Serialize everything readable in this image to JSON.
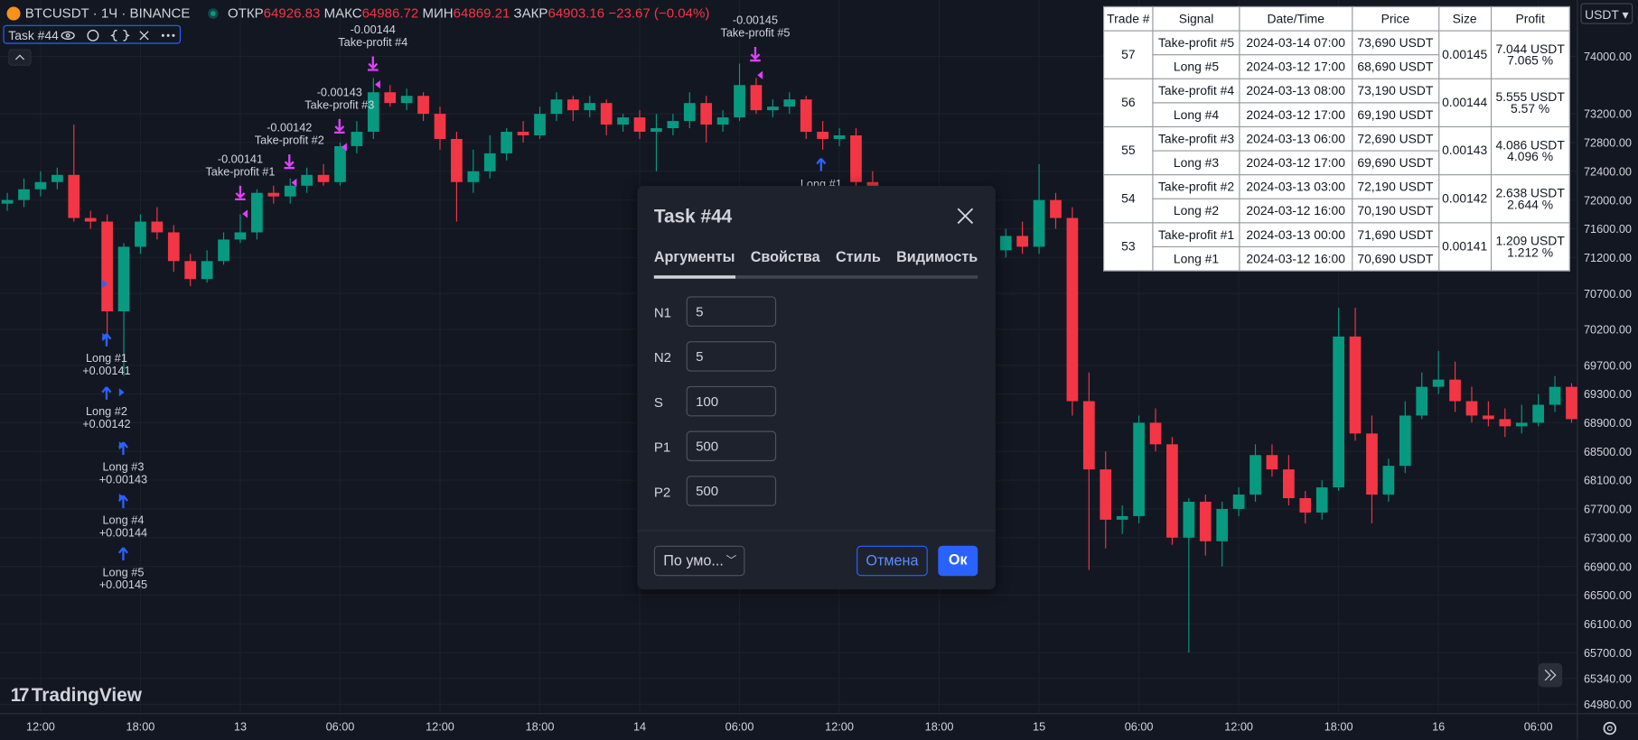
{
  "header": {
    "symbol": "BTCUSDT · 1Ч · BINANCE",
    "open_label": "ОТКР",
    "open": "64926.83",
    "high_label": "МАКС",
    "high": "64986.72",
    "low_label": "МИН",
    "low": "64869.21",
    "close_label": "ЗАКР",
    "close": "64903.16",
    "change": "−23.67 (−0.04%)",
    "indicator": "Task #44",
    "currency": "USDT"
  },
  "logo": "TradingView",
  "chart": {
    "type": "candlestick",
    "ylim": [
      64980,
      74000
    ],
    "yticks": [
      {
        "value": 74000,
        "label": "74000.00"
      },
      {
        "value": 73200,
        "label": "73200.00"
      },
      {
        "value": 72800,
        "label": "72800.00"
      },
      {
        "value": 72400,
        "label": "72400.00"
      },
      {
        "value": 72000,
        "label": "72000.00"
      },
      {
        "value": 71600,
        "label": "71600.00"
      },
      {
        "value": 71200,
        "label": "71200.00"
      },
      {
        "value": 70700,
        "label": "70700.00"
      },
      {
        "value": 70200,
        "label": "70200.00"
      },
      {
        "value": 69700,
        "label": "69700.00"
      },
      {
        "value": 69300,
        "label": "69300.00"
      },
      {
        "value": 68900,
        "label": "68900.00"
      },
      {
        "value": 68500,
        "label": "68500.00"
      },
      {
        "value": 68100,
        "label": "68100.00"
      },
      {
        "value": 67700,
        "label": "67700.00"
      },
      {
        "value": 67300,
        "label": "67300.00"
      },
      {
        "value": 66900,
        "label": "66900.00"
      },
      {
        "value": 66500,
        "label": "66500.00"
      },
      {
        "value": 66100,
        "label": "66100.00"
      },
      {
        "value": 65700,
        "label": "65700.00"
      },
      {
        "value": 65340,
        "label": "65340.00"
      },
      {
        "value": 64980,
        "label": "64980.00"
      }
    ],
    "time_labels": [
      "12:00",
      "18:00",
      "13",
      "06:00",
      "12:00",
      "18:00",
      "14",
      "06:00",
      "12:00",
      "18:00",
      "15",
      "06:00",
      "12:00",
      "18:00",
      "16",
      "06:00"
    ],
    "up_color": "#089981",
    "down_color": "#f23645",
    "candles": [
      [
        71950,
        72100,
        71850,
        72000
      ],
      [
        72000,
        72300,
        71900,
        72150
      ],
      [
        72150,
        72400,
        72050,
        72250
      ],
      [
        72250,
        72450,
        72150,
        72350
      ],
      [
        72350,
        73050,
        71700,
        71750
      ],
      [
        71750,
        71850,
        71600,
        71700
      ],
      [
        71700,
        71800,
        70000,
        70450
      ],
      [
        70450,
        71400,
        69550,
        71350
      ],
      [
        71350,
        71800,
        71250,
        71700
      ],
      [
        71700,
        71900,
        71450,
        71550
      ],
      [
        71550,
        71650,
        71000,
        71150
      ],
      [
        71150,
        71250,
        70800,
        70900
      ],
      [
        70900,
        71300,
        70850,
        71150
      ],
      [
        71150,
        71550,
        71100,
        71450
      ],
      [
        71450,
        71800,
        71400,
        71550
      ],
      [
        71550,
        72150,
        71450,
        72100
      ],
      [
        72100,
        72200,
        71950,
        72050
      ],
      [
        72050,
        72300,
        71950,
        72200
      ],
      [
        72200,
        72450,
        72100,
        72350
      ],
      [
        72350,
        72500,
        72200,
        72250
      ],
      [
        72250,
        72800,
        72200,
        72750
      ],
      [
        72750,
        73100,
        72650,
        72950
      ],
      [
        72950,
        73700,
        72850,
        73500
      ],
      [
        73500,
        73600,
        73300,
        73350
      ],
      [
        73350,
        73550,
        73250,
        73450
      ],
      [
        73450,
        73500,
        73100,
        73200
      ],
      [
        73200,
        73300,
        72700,
        72850
      ],
      [
        72850,
        72950,
        71700,
        72250
      ],
      [
        72250,
        72700,
        72100,
        72400
      ],
      [
        72400,
        72900,
        72300,
        72650
      ],
      [
        72650,
        73000,
        72550,
        72950
      ],
      [
        72950,
        73100,
        72800,
        72900
      ],
      [
        72900,
        73300,
        72850,
        73200
      ],
      [
        73200,
        73500,
        73100,
        73400
      ],
      [
        73400,
        73450,
        73100,
        73250
      ],
      [
        73250,
        73450,
        73150,
        73350
      ],
      [
        73350,
        73400,
        72900,
        73050
      ],
      [
        73050,
        73200,
        72950,
        73150
      ],
      [
        73150,
        73250,
        72850,
        72950
      ],
      [
        72950,
        73200,
        72400,
        73000
      ],
      [
        73000,
        73200,
        72900,
        73100
      ],
      [
        73100,
        73500,
        73000,
        73350
      ],
      [
        73350,
        73450,
        72800,
        73050
      ],
      [
        73050,
        73250,
        72950,
        73150
      ],
      [
        73150,
        73900,
        73100,
        73600
      ],
      [
        73600,
        73700,
        73200,
        73250
      ],
      [
        73250,
        73400,
        73150,
        73300
      ],
      [
        73300,
        73500,
        73200,
        73400
      ],
      [
        73400,
        73450,
        72850,
        72950
      ],
      [
        72950,
        73100,
        72700,
        72850
      ],
      [
        72850,
        73000,
        72750,
        72900
      ],
      [
        72900,
        73000,
        71900,
        72250
      ],
      [
        72250,
        72400,
        71800,
        71900
      ],
      [
        71900,
        72100,
        71600,
        71700
      ],
      [
        71700,
        71800,
        71350,
        71500
      ],
      [
        71500,
        71900,
        71400,
        71800
      ],
      [
        71800,
        71900,
        71500,
        71600
      ],
      [
        71600,
        72000,
        71550,
        71900
      ],
      [
        71900,
        72000,
        71500,
        71600
      ],
      [
        71600,
        71700,
        71200,
        71300
      ],
      [
        71300,
        71600,
        71200,
        71500
      ],
      [
        71500,
        71700,
        71250,
        71350
      ],
      [
        71350,
        72500,
        71250,
        72000
      ],
      [
        72000,
        72100,
        71600,
        71750
      ],
      [
        71750,
        71900,
        69000,
        69200
      ],
      [
        69200,
        69600,
        66850,
        68250
      ],
      [
        68250,
        68500,
        67150,
        67550
      ],
      [
        67550,
        67750,
        67350,
        67600
      ],
      [
        67600,
        69000,
        67500,
        68900
      ],
      [
        68900,
        69100,
        68500,
        68600
      ],
      [
        68600,
        68700,
        67200,
        67300
      ],
      [
        67300,
        67850,
        65700,
        67800
      ],
      [
        67800,
        67900,
        67050,
        67250
      ],
      [
        67250,
        67800,
        66900,
        67700
      ],
      [
        67700,
        68000,
        67600,
        67900
      ],
      [
        67900,
        68600,
        67800,
        68450
      ],
      [
        68450,
        68600,
        68150,
        68250
      ],
      [
        68250,
        68450,
        67750,
        67850
      ],
      [
        67850,
        67950,
        67500,
        67650
      ],
      [
        67650,
        68100,
        67550,
        68000
      ],
      [
        68000,
        70500,
        67950,
        70100
      ],
      [
        70100,
        70500,
        68650,
        68750
      ],
      [
        68750,
        69000,
        67500,
        67900
      ],
      [
        67900,
        68400,
        67800,
        68300
      ],
      [
        68300,
        69200,
        68200,
        69000
      ],
      [
        69000,
        69600,
        68950,
        69400
      ],
      [
        69400,
        69900,
        69300,
        69500
      ],
      [
        69500,
        69750,
        69050,
        69200
      ],
      [
        69200,
        69400,
        68900,
        69000
      ],
      [
        69000,
        69200,
        68850,
        68950
      ],
      [
        68950,
        69100,
        68700,
        68850
      ],
      [
        68850,
        69150,
        68750,
        68900
      ],
      [
        68900,
        69300,
        68850,
        69150
      ],
      [
        69150,
        69550,
        69050,
        69400
      ],
      [
        69400,
        69450,
        68900,
        68950
      ]
    ],
    "longs": [
      {
        "label": "Long #1",
        "size": "+0.00141"
      },
      {
        "label": "Long #2",
        "size": "+0.00142"
      },
      {
        "label": "Long #3",
        "size": "+0.00143"
      },
      {
        "label": "Long #4",
        "size": "+0.00144"
      },
      {
        "label": "Long #5",
        "size": "+0.00145"
      }
    ],
    "take_profits": [
      {
        "size": "-0.00141",
        "label": "Take-profit #1"
      },
      {
        "size": "-0.00142",
        "label": "Take-profit #2"
      },
      {
        "size": "-0.00143",
        "label": "Take-profit #3"
      },
      {
        "size": "-0.00144",
        "label": "Take-profit #4"
      },
      {
        "size": "-0.00145",
        "label": "Take-profit #5"
      }
    ],
    "extra_long": "Long #1"
  },
  "table": {
    "headers": [
      "Trade #",
      "Signal",
      "Date/Time",
      "Price",
      "Size",
      "Profit"
    ],
    "trades": [
      {
        "trade": "57",
        "size": "0.00145",
        "profit": [
          "7.044 USDT",
          "7.065 %"
        ],
        "rows": [
          [
            "Take-profit #5",
            "2024-03-14 07:00",
            "73,690 USDT"
          ],
          [
            "Long #5",
            "2024-03-12 17:00",
            "68,690 USDT"
          ]
        ]
      },
      {
        "trade": "56",
        "size": "0.00144",
        "profit": [
          "5.555 USDT",
          "5.57 %"
        ],
        "rows": [
          [
            "Take-profit #4",
            "2024-03-13 08:00",
            "73,190 USDT"
          ],
          [
            "Long #4",
            "2024-03-12 17:00",
            "69,190 USDT"
          ]
        ]
      },
      {
        "trade": "55",
        "size": "0.00143",
        "profit": [
          "4.086 USDT",
          "4.096 %"
        ],
        "rows": [
          [
            "Take-profit #3",
            "2024-03-13 06:00",
            "72,690 USDT"
          ],
          [
            "Long #3",
            "2024-03-12 17:00",
            "69,690 USDT"
          ]
        ]
      },
      {
        "trade": "54",
        "size": "0.00142",
        "profit": [
          "2.638 USDT",
          "2.644 %"
        ],
        "rows": [
          [
            "Take-profit #2",
            "2024-03-13 03:00",
            "72,190 USDT"
          ],
          [
            "Long #2",
            "2024-03-12 16:00",
            "70,190 USDT"
          ]
        ]
      },
      {
        "trade": "53",
        "size": "0.00141",
        "profit": [
          "1.209 USDT",
          "1.212 %"
        ],
        "rows": [
          [
            "Take-profit #1",
            "2024-03-13 00:00",
            "71,690 USDT"
          ],
          [
            "Long #1",
            "2024-03-12 16:00",
            "70,690 USDT"
          ]
        ]
      }
    ]
  },
  "dialog": {
    "title": "Task #44",
    "tabs": [
      "Аргументы",
      "Свойства",
      "Стиль",
      "Видимость"
    ],
    "fields": [
      {
        "label": "N1",
        "value": "5"
      },
      {
        "label": "N2",
        "value": "5"
      },
      {
        "label": "S",
        "value": "100"
      },
      {
        "label": "P1",
        "value": "500"
      },
      {
        "label": "P2",
        "value": "500"
      }
    ],
    "preset": "По умо...",
    "cancel": "Отмена",
    "ok": "Ок"
  }
}
